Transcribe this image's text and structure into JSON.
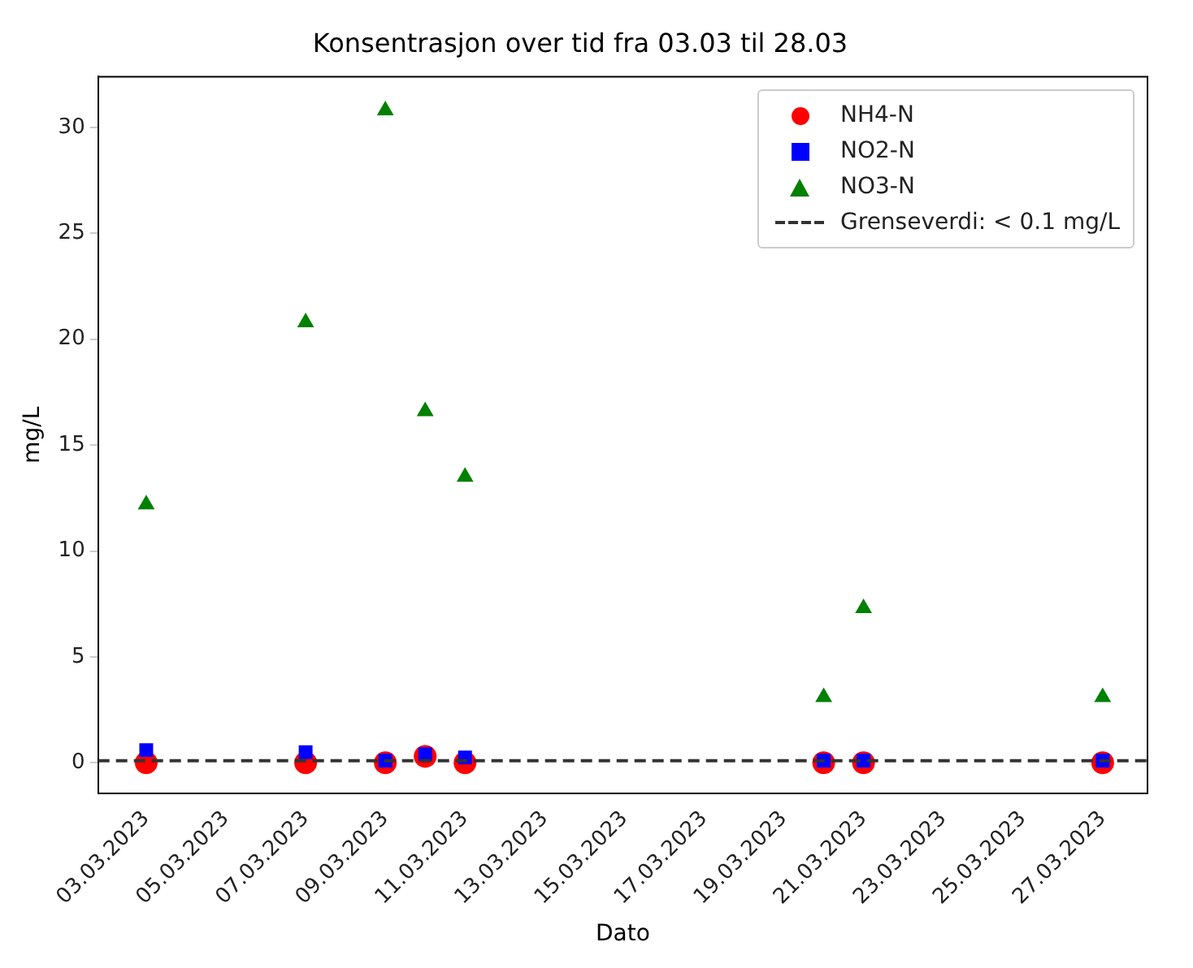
{
  "chart_data": {
    "type": "scatter",
    "title": "Konsentrasjon over tid fra 03.03 til 28.03",
    "xlabel": "Dato",
    "ylabel": "mg/L",
    "x": [
      "2023-03-03",
      "2023-03-07",
      "2023-03-09",
      "2023-03-10",
      "2023-03-11",
      "2023-03-20",
      "2023-03-21",
      "2023-03-27"
    ],
    "series": [
      {
        "name": "NH4-N",
        "color": "#ff0000",
        "marker": "circle",
        "values": [
          0,
          0,
          0,
          0.3,
          0,
          0,
          0,
          0
        ]
      },
      {
        "name": "NO2-N",
        "color": "#0000ff",
        "marker": "square",
        "values": [
          0.6,
          0.5,
          0.1,
          0.4,
          0.25,
          0.1,
          0.1,
          0.1
        ]
      },
      {
        "name": "NO3-N",
        "color": "#008000",
        "marker": "triangle",
        "values": [
          12.2,
          20.8,
          30.8,
          16.6,
          13.5,
          3.1,
          7.3,
          3.1
        ]
      }
    ],
    "ref_lines": [
      {
        "axis": "y",
        "value": 0.1,
        "label": "Grenseverdi: < 0.1 mg/L",
        "color": "#333333",
        "line_style": "dashed"
      }
    ],
    "xlim": [
      "2023-03-01T19:00",
      "2023-03-28T03:00"
    ],
    "xticks": [
      {
        "value": "2023-03-03",
        "label": "03.03.2023"
      },
      {
        "value": "2023-03-05",
        "label": "05.03.2023"
      },
      {
        "value": "2023-03-07",
        "label": "07.03.2023"
      },
      {
        "value": "2023-03-09",
        "label": "09.03.2023"
      },
      {
        "value": "2023-03-11",
        "label": "11.03.2023"
      },
      {
        "value": "2023-03-13",
        "label": "13.03.2023"
      },
      {
        "value": "2023-03-15",
        "label": "15.03.2023"
      },
      {
        "value": "2023-03-17",
        "label": "17.03.2023"
      },
      {
        "value": "2023-03-19",
        "label": "19.03.2023"
      },
      {
        "value": "2023-03-21",
        "label": "21.03.2023"
      },
      {
        "value": "2023-03-23",
        "label": "23.03.2023"
      },
      {
        "value": "2023-03-25",
        "label": "25.03.2023"
      },
      {
        "value": "2023-03-27",
        "label": "27.03.2023"
      }
    ],
    "ylim": [
      -1.45,
      32.4
    ],
    "yticks": [
      0,
      5,
      10,
      15,
      20,
      25,
      30
    ],
    "grid": false,
    "legend": "top right"
  }
}
